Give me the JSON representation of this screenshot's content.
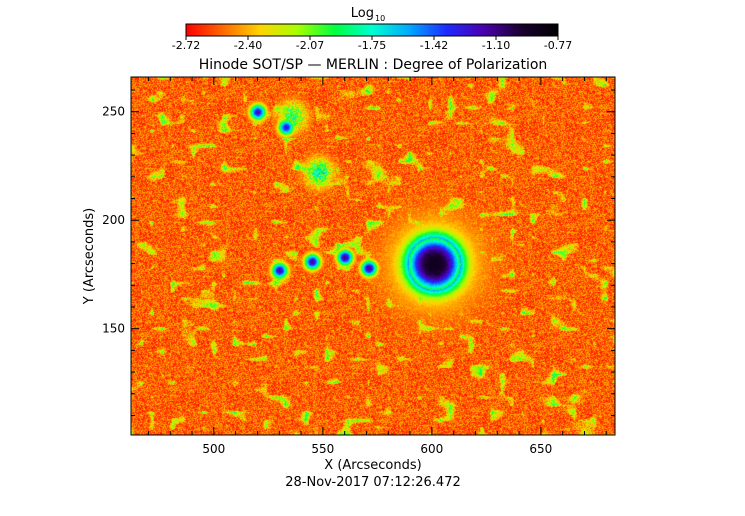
{
  "chart_data": {
    "type": "heatmap",
    "title": "Hinode SOT/SP — MERLIN : Degree of Polarization",
    "xlabel": "X (Arcseconds)",
    "ylabel": "Y (Arcseconds)",
    "timestamp": "28-Nov-2017 07:12:26.472",
    "colorbar": {
      "label_main": "Log",
      "label_sub": "10",
      "ticks": [
        "-2.72",
        "-2.40",
        "-2.07",
        "-1.75",
        "-1.42",
        "-1.10",
        "-0.77"
      ],
      "range": [
        -2.72,
        -0.77
      ],
      "colormap": "rainbow (red → yellow → green → cyan → blue → purple → black)"
    },
    "x_ticks": [
      {
        "value": 500,
        "label": "500"
      },
      {
        "value": 550,
        "label": "550"
      },
      {
        "value": 600,
        "label": "600"
      },
      {
        "value": 650,
        "label": "650"
      }
    ],
    "y_ticks": [
      {
        "value": 150,
        "label": "150"
      },
      {
        "value": 200,
        "label": "200"
      },
      {
        "value": 250,
        "label": "250"
      }
    ],
    "xlim": [
      462,
      684
    ],
    "ylim": [
      101,
      266
    ],
    "features": [
      {
        "kind": "sunspot_umbra",
        "x": 601,
        "y": 180,
        "log_dop": -0.9
      },
      {
        "kind": "pore",
        "x": 560,
        "y": 183,
        "log_dop": -1.1
      },
      {
        "kind": "pore",
        "x": 571,
        "y": 178,
        "log_dop": -1.1
      },
      {
        "kind": "pore",
        "x": 530,
        "y": 177,
        "log_dop": -1.15
      },
      {
        "kind": "pore",
        "x": 545,
        "y": 181,
        "log_dop": -1.15
      },
      {
        "kind": "pore",
        "x": 520,
        "y": 250,
        "log_dop": -1.2
      },
      {
        "kind": "pore",
        "x": 533,
        "y": 243,
        "log_dop": -1.25
      },
      {
        "kind": "plage_strand",
        "x": 548,
        "y": 222,
        "log_dop": -1.6
      },
      {
        "kind": "plage_strand",
        "x": 536,
        "y": 248,
        "log_dop": -1.7
      }
    ],
    "grid": false
  },
  "colors": {
    "colormap": [
      "#ff0000",
      "#ff6a00",
      "#ffd500",
      "#a6ff00",
      "#00ff40",
      "#00ffd0",
      "#00a8ff",
      "#1f2aff",
      "#4b00b0",
      "#1a0030",
      "#000000"
    ],
    "background": "#ffffff",
    "text": "#000000"
  }
}
